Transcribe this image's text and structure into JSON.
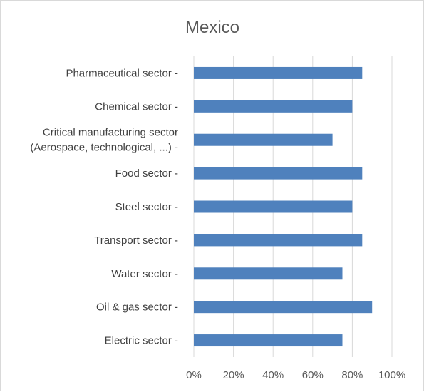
{
  "chart_data": {
    "type": "bar",
    "orientation": "horizontal",
    "title": "Mexico",
    "categories": [
      [
        "Pharmaceutical sector -"
      ],
      [
        "Chemical sector -"
      ],
      [
        "Critical manufacturing sector",
        "(Aerospace, technological, ...) -"
      ],
      [
        "Food sector -"
      ],
      [
        "Steel sector -"
      ],
      [
        "Transport sector -"
      ],
      [
        "Water sector -"
      ],
      [
        "Oil & gas sector -"
      ],
      [
        "Electric sector -"
      ]
    ],
    "values": [
      85,
      80,
      70,
      85,
      80,
      85,
      75,
      90,
      75
    ],
    "xlim": [
      0,
      100
    ],
    "xticks": [
      0,
      20,
      40,
      60,
      80,
      100
    ],
    "xtick_labels": [
      "0%",
      "20%",
      "40%",
      "60%",
      "80%",
      "100%"
    ],
    "grid": "vertical",
    "bar_color": "#4f81bd"
  }
}
